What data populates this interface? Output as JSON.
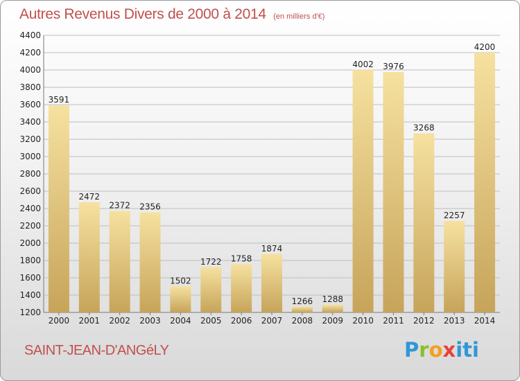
{
  "title": "Autres Revenus Divers de 2000 à 2014",
  "subtitle": "(en milliers d'€)",
  "commune": "SAINT-JEAN-D'ANGéLY",
  "logo": {
    "p1": "P",
    "p2": "r",
    "p3": "o",
    "p4": "x",
    "p5": "iti"
  },
  "chart_data": {
    "type": "bar",
    "title": "Autres Revenus Divers de 2000 à 2014",
    "subtitle": "(en milliers d'€)",
    "xlabel": "",
    "ylabel": "",
    "categories": [
      "2000",
      "2001",
      "2002",
      "2003",
      "2004",
      "2005",
      "2006",
      "2007",
      "2008",
      "2009",
      "2010",
      "2011",
      "2012",
      "2013",
      "2014"
    ],
    "values": [
      3591,
      2472,
      2372,
      2356,
      1502,
      1722,
      1758,
      1874,
      1266,
      1288,
      4002,
      3976,
      3268,
      2257,
      4200
    ],
    "ylim": [
      1200,
      4400
    ],
    "yticks": [
      1200,
      1400,
      1600,
      1800,
      2000,
      2200,
      2400,
      2600,
      2800,
      3000,
      3200,
      3400,
      3600,
      3800,
      4000,
      4200,
      4400
    ],
    "grid": true,
    "colors": {
      "bar_top": "#f5de9a",
      "bar_bottom": "#c9a85c",
      "grid": "#bdbdbd"
    }
  }
}
